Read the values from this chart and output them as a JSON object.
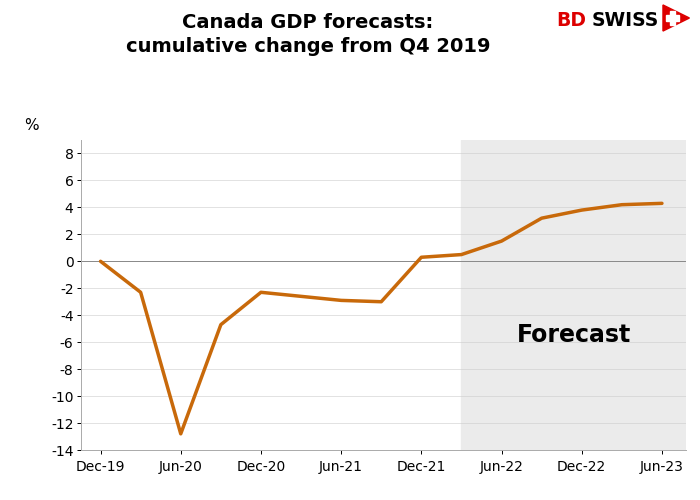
{
  "title_line1": "Canada GDP forecasts:",
  "title_line2": "cumulative change from Q4 2019",
  "ylabel": "%",
  "line_color": "#C8690A",
  "line_width": 2.5,
  "forecast_shade_color": "#EBEBEB",
  "forecast_label": "Forecast",
  "forecast_label_fontsize": 17,
  "ylim": [
    -14,
    9
  ],
  "yticks": [
    -14,
    -12,
    -10,
    -8,
    -6,
    -4,
    -2,
    0,
    2,
    4,
    6,
    8
  ],
  "x_labels": [
    "Dec-19",
    "Jun-20",
    "Dec-20",
    "Jun-21",
    "Dec-21",
    "Jun-22",
    "Dec-22",
    "Jun-23"
  ],
  "x_values": [
    0,
    1,
    2,
    3,
    4,
    5,
    6,
    7
  ],
  "data_x": [
    0.0,
    0.5,
    1.0,
    1.5,
    2.0,
    2.5,
    3.0,
    3.5,
    4.0,
    4.5,
    5.0,
    5.5,
    6.0,
    6.5,
    7.0
  ],
  "data_y": [
    0.0,
    -2.3,
    -12.8,
    -4.7,
    -2.3,
    -2.6,
    -2.9,
    -3.0,
    0.3,
    0.5,
    1.5,
    3.2,
    3.8,
    4.2,
    4.3
  ],
  "forecast_start_x": 4.5,
  "background_color": "#FFFFFF",
  "xlim_left": -0.25,
  "xlim_right": 7.3
}
